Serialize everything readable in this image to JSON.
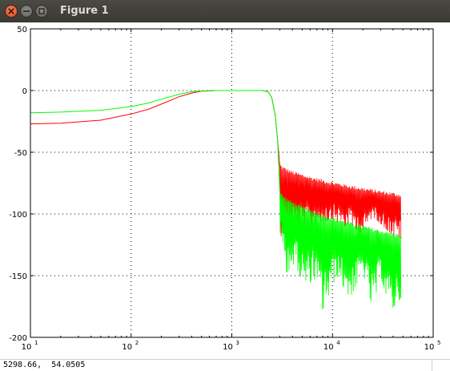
{
  "window": {
    "title": "Figure 1",
    "buttons": {
      "close": "close-icon",
      "minimize": "minimize-icon",
      "maximize": "maximize-icon"
    }
  },
  "status": {
    "coordinates": "5298.66,  54.0505"
  },
  "colors": {
    "red_series": "#ff0000",
    "green_series": "#00ff00",
    "axes": "#000000",
    "grid": "#000000"
  },
  "chart_data": {
    "type": "line",
    "x_scale": "log",
    "y_scale": "linear",
    "xlim": [
      10,
      100000
    ],
    "ylim": [
      -200,
      50
    ],
    "grid": true,
    "x_ticks": [
      {
        "base": "10",
        "exp": "1",
        "value": 10
      },
      {
        "base": "10",
        "exp": "2",
        "value": 100
      },
      {
        "base": "10",
        "exp": "3",
        "value": 1000
      },
      {
        "base": "10",
        "exp": "4",
        "value": 10000
      },
      {
        "base": "10",
        "exp": "5",
        "value": 100000
      }
    ],
    "y_ticks": [
      {
        "label": "50",
        "value": 50
      },
      {
        "label": "0",
        "value": 0
      },
      {
        "label": "-50",
        "value": -50
      },
      {
        "label": "-100",
        "value": -100
      },
      {
        "label": "-150",
        "value": -150
      },
      {
        "label": "-200",
        "value": -200
      }
    ],
    "series": [
      {
        "color": "#ff0000",
        "x": [
          10,
          20,
          50,
          100,
          150,
          200,
          300,
          400,
          500,
          700,
          1000,
          1500,
          2000,
          2300,
          2500,
          2700,
          2850,
          3000
        ],
        "y": [
          -27,
          -26.5,
          -24,
          -19,
          -15,
          -11,
          -5,
          -2,
          -0.5,
          0,
          0,
          0,
          0,
          -1,
          -6,
          -20,
          -40,
          -62
        ],
        "noisy_tail": {
          "x_start": 3000,
          "x_end": 48000,
          "upper_start": -60,
          "upper_end": -85,
          "lower": [
            {
              "x": 3100,
              "y": -118
            },
            {
              "x": 4000,
              "y": -110
            },
            {
              "x": 5500,
              "y": -112
            },
            {
              "x": 7000,
              "y": -107
            },
            {
              "x": 10000,
              "y": -104
            },
            {
              "x": 13000,
              "y": -110
            },
            {
              "x": 15000,
              "y": -108
            },
            {
              "x": 20000,
              "y": -117
            },
            {
              "x": 25000,
              "y": -102
            },
            {
              "x": 32000,
              "y": -110
            },
            {
              "x": 40000,
              "y": -118
            },
            {
              "x": 48000,
              "y": -120
            }
          ]
        }
      },
      {
        "color": "#00ff00",
        "x": [
          10,
          20,
          50,
          100,
          150,
          200,
          300,
          400,
          500,
          700,
          1000,
          1500,
          2000,
          2300,
          2500,
          2700,
          2850,
          3000
        ],
        "y": [
          -18,
          -17.5,
          -16,
          -13,
          -10,
          -7,
          -3,
          -1,
          -0.3,
          0,
          0,
          0,
          0,
          -1,
          -6,
          -20,
          -40,
          -82
        ],
        "noisy_tail": {
          "x_start": 3000,
          "x_end": 48000,
          "upper_start": -82,
          "upper_end": -118,
          "lower": [
            {
              "x": 3100,
              "y": -120
            },
            {
              "x": 3500,
              "y": -148
            },
            {
              "x": 4200,
              "y": -140
            },
            {
              "x": 5500,
              "y": -162
            },
            {
              "x": 6500,
              "y": -150
            },
            {
              "x": 8000,
              "y": -178
            },
            {
              "x": 11000,
              "y": -150
            },
            {
              "x": 15000,
              "y": -168
            },
            {
              "x": 20000,
              "y": -146
            },
            {
              "x": 25000,
              "y": -176
            },
            {
              "x": 30000,
              "y": -150
            },
            {
              "x": 38000,
              "y": -178
            },
            {
              "x": 48000,
              "y": -168
            }
          ]
        }
      }
    ]
  }
}
